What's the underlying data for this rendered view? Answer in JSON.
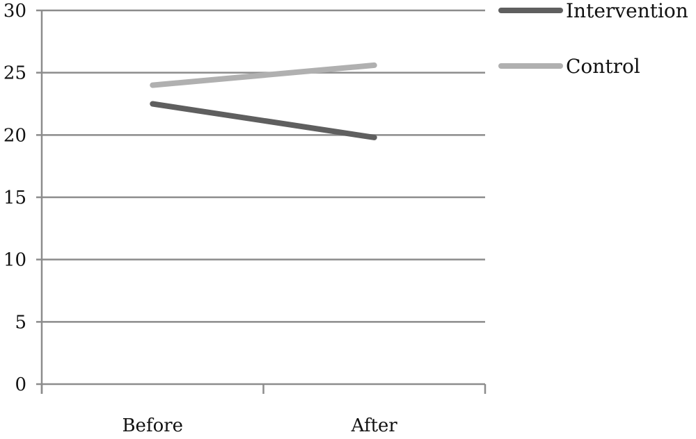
{
  "chart_data": {
    "type": "line",
    "categories": [
      "Before",
      "After"
    ],
    "series": [
      {
        "name": "Intervention",
        "values": [
          22.5,
          19.8
        ],
        "color": "#5f5f5f"
      },
      {
        "name": "Control",
        "values": [
          24.0,
          25.6
        ],
        "color": "#b0b0b0"
      }
    ],
    "ylim": [
      0,
      30
    ],
    "yticks": [
      "0",
      "5",
      "10",
      "15",
      "20",
      "25",
      "30"
    ],
    "grid": true,
    "legend_position": "top-right",
    "title": "",
    "xlabel": "",
    "ylabel": ""
  }
}
